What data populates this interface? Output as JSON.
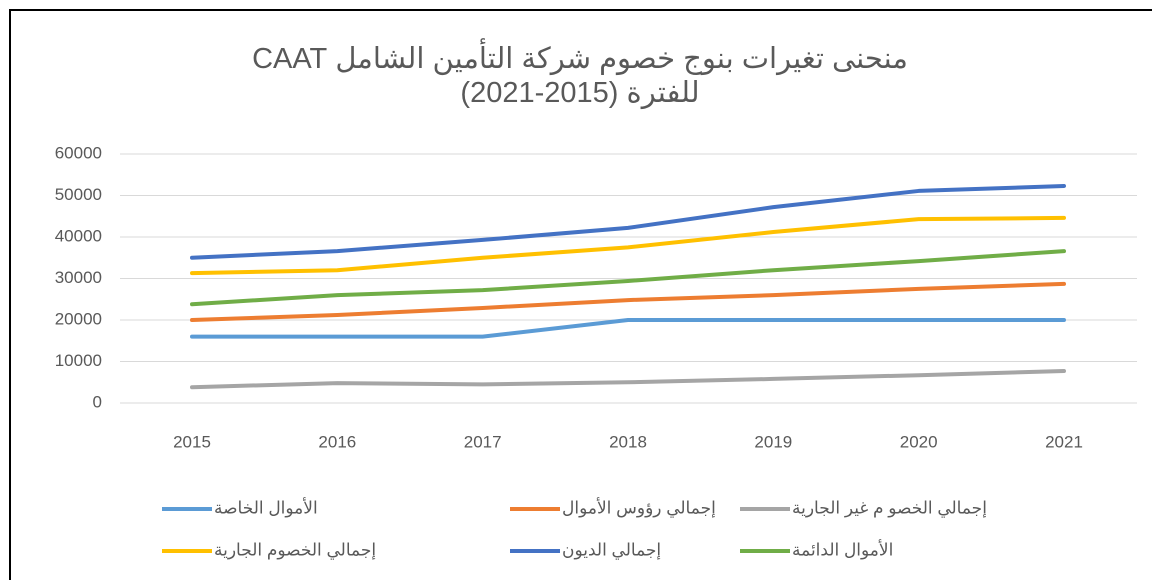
{
  "chart_data": {
    "type": "line",
    "title": "منحنى تغيرات بنوج خصوم شركة التأمين الشامل CAAT للفترة (2015-2021)",
    "categories": [
      "2015",
      "2016",
      "2017",
      "2018",
      "2019",
      "2020",
      "2021"
    ],
    "series": [
      {
        "name": "الأموال الخاصة",
        "color": "#5b9bd5",
        "values": [
          16000,
          16000,
          16000,
          20000,
          20000,
          20000,
          20000
        ]
      },
      {
        "name": "إجمالي رؤوس الأموال",
        "color": "#ed7d31",
        "values": [
          20000,
          21200,
          22900,
          24800,
          26000,
          27500,
          28700
        ]
      },
      {
        "name": "إجمالي الخصو م غير الجارية",
        "color": "#a5a5a5",
        "values": [
          3800,
          4800,
          4500,
          5000,
          5800,
          6700,
          7700
        ]
      },
      {
        "name": "إجمالي الخصوم الجارية",
        "color": "#ffc000",
        "values": [
          31300,
          32000,
          35000,
          37500,
          41200,
          44300,
          44600
        ]
      },
      {
        "name": "إجمالي الديون",
        "color": "#4472c4",
        "values": [
          35000,
          36600,
          39300,
          42200,
          47200,
          51100,
          52300
        ]
      },
      {
        "name": "الأموال الدائمة",
        "color": "#70ad47",
        "values": [
          23800,
          26000,
          27200,
          29400,
          32000,
          34200,
          36600
        ]
      }
    ],
    "ylim": [
      0,
      60000
    ],
    "yticks": [
      0,
      10000,
      20000,
      30000,
      40000,
      50000,
      60000
    ],
    "grid": true,
    "legend": "bottom"
  }
}
